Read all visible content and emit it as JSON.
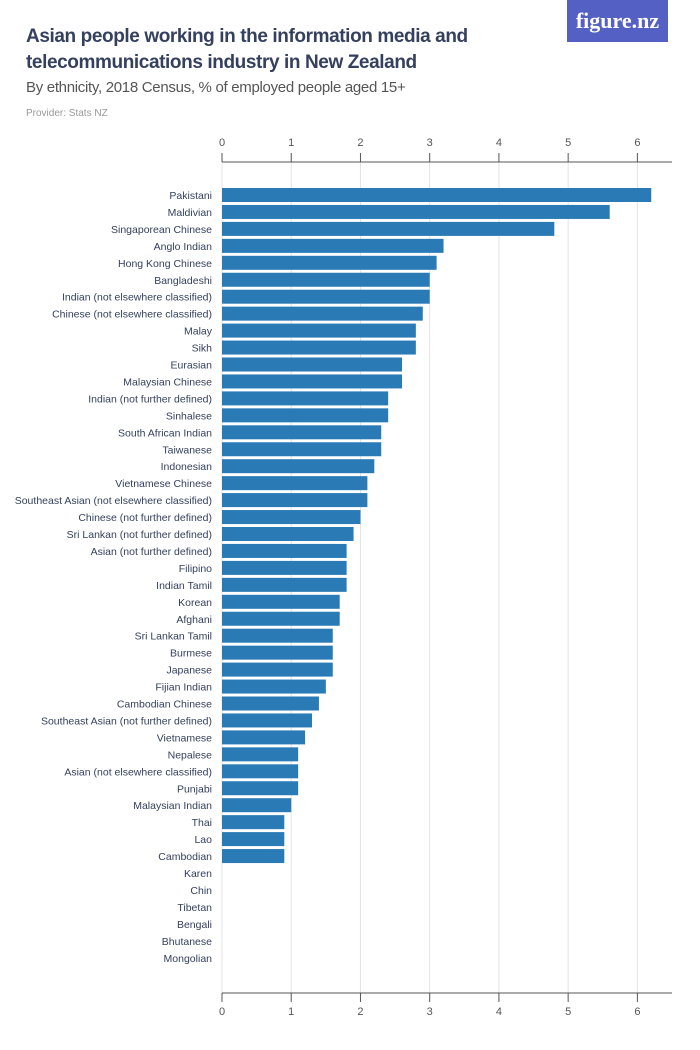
{
  "header": {
    "title": "Asian people working in the information media and telecommunications industry in New Zealand",
    "subtitle": "By ethnicity, 2018 Census, % of employed people aged 15+",
    "provider": "Provider: Stats NZ",
    "logo": "figure.nz"
  },
  "chart_data": {
    "type": "bar",
    "orientation": "horizontal",
    "title": "Asian people working in the information media and telecommunications industry in New Zealand",
    "subtitle": "By ethnicity, 2018 Census, % of employed people aged 15+",
    "xlim": [
      0,
      6.5
    ],
    "ticks": [
      0,
      1,
      2,
      3,
      4,
      5,
      6
    ],
    "grid": true,
    "color": "#2a7ab5",
    "categories": [
      "Pakistani",
      "Maldivian",
      "Singaporean Chinese",
      "Anglo Indian",
      "Hong Kong Chinese",
      "Bangladeshi",
      "Indian (not elsewhere classified)",
      "Chinese (not elsewhere classified)",
      "Malay",
      "Sikh",
      "Eurasian",
      "Malaysian Chinese",
      "Indian (not further defined)",
      "Sinhalese",
      "South African Indian",
      "Taiwanese",
      "Indonesian",
      "Vietnamese Chinese",
      "Southeast Asian (not elsewhere classified)",
      "Chinese (not further defined)",
      "Sri Lankan (not further defined)",
      "Asian (not further defined)",
      "Filipino",
      "Indian Tamil",
      "Korean",
      "Afghani",
      "Sri Lankan Tamil",
      "Burmese",
      "Japanese",
      "Fijian Indian",
      "Cambodian Chinese",
      "Southeast Asian (not further defined)",
      "Vietnamese",
      "Nepalese",
      "Asian (not elsewhere classified)",
      "Punjabi",
      "Malaysian Indian",
      "Thai",
      "Lao",
      "Cambodian",
      "Karen",
      "Chin",
      "Tibetan",
      "Bengali",
      "Bhutanese",
      "Mongolian"
    ],
    "values": [
      6.2,
      5.6,
      4.8,
      3.2,
      3.1,
      3.0,
      3.0,
      2.9,
      2.8,
      2.8,
      2.6,
      2.6,
      2.4,
      2.4,
      2.3,
      2.3,
      2.2,
      2.1,
      2.1,
      2.0,
      1.9,
      1.8,
      1.8,
      1.8,
      1.7,
      1.7,
      1.6,
      1.6,
      1.6,
      1.5,
      1.4,
      1.3,
      1.2,
      1.1,
      1.1,
      1.1,
      1.0,
      0.9,
      0.9,
      0.9,
      null,
      null,
      null,
      null,
      null,
      null
    ]
  }
}
